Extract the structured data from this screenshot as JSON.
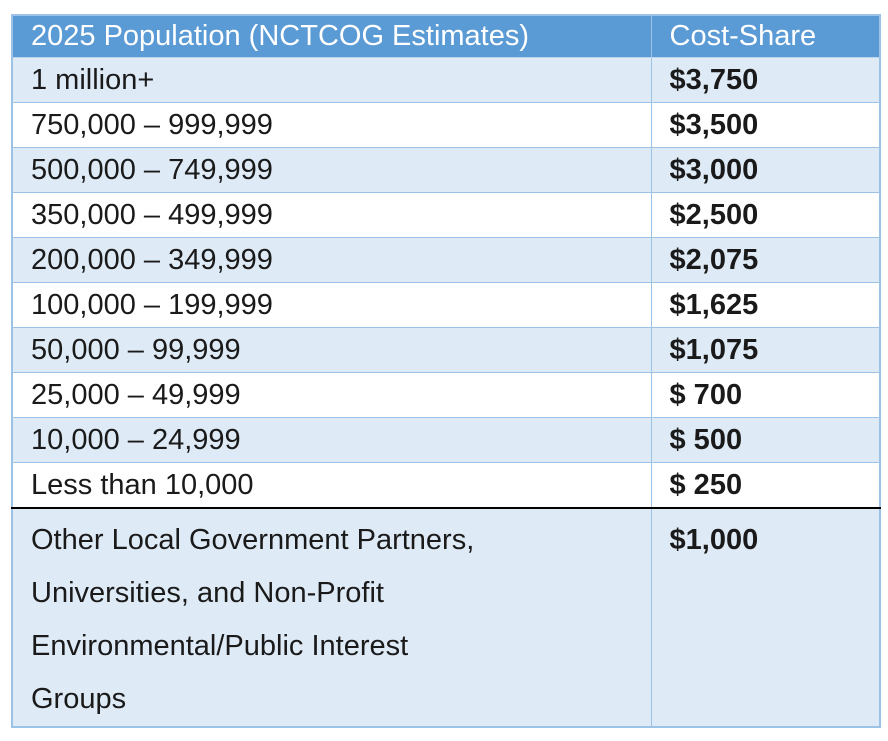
{
  "table": {
    "header": {
      "population_label": "2025 Population (NCTCOG Estimates)",
      "cost_label": "Cost-Share"
    },
    "rows": [
      {
        "population": "1 million+",
        "cost": "$3,750"
      },
      {
        "population": "750,000 – 999,999",
        "cost": "$3,500"
      },
      {
        "population": "500,000 – 749,999",
        "cost": "$3,000"
      },
      {
        "population": "350,000 – 499,999",
        "cost": "$2,500"
      },
      {
        "population": "200,000 – 349,999",
        "cost": "$2,075"
      },
      {
        "population": "100,000 – 199,999",
        "cost": "$1,625"
      },
      {
        "population": "50,000 – 99,999",
        "cost": "$1,075"
      },
      {
        "population": "25,000 – 49,999",
        "cost": "$ 700"
      },
      {
        "population": "10,000 – 24,999",
        "cost": "$ 500"
      },
      {
        "population": "Less than 10,000",
        "cost": "$ 250"
      },
      {
        "population": "Other Local Government Partners,\nUniversities, and Non-Profit\nEnvironmental/Public Interest\nGroups",
        "cost": "$1,000"
      }
    ],
    "colors": {
      "header_bg": "#5B9BD5",
      "header_text": "#FFFFFF",
      "row_alt_bg": "#DEEAF6",
      "row_bg": "#FFFFFF",
      "grid_border": "#9CC3E6",
      "separator": "#000000",
      "body_text": "#1A1A1A"
    }
  }
}
